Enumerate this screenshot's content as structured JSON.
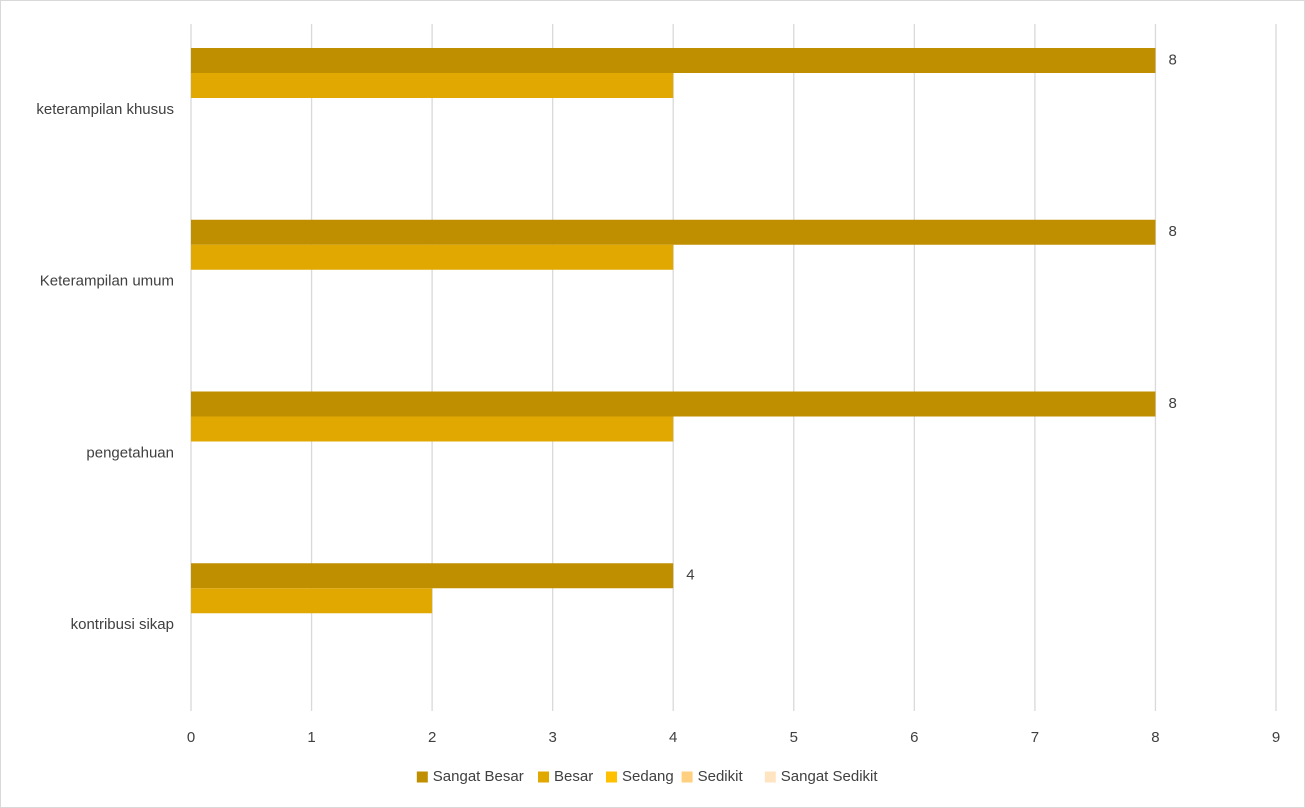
{
  "chart_data": {
    "type": "bar",
    "orientation": "horizontal",
    "categories": [
      "keterampilan khusus",
      "Keterampilan umum",
      "pengetahuan",
      "kontribusi sikap"
    ],
    "series": [
      {
        "name": "Sangat Besar",
        "color": "#bf8f00",
        "values": [
          8,
          8,
          8,
          4
        ],
        "show_labels": true
      },
      {
        "name": "Besar",
        "color": "#e0a800",
        "values": [
          4,
          4,
          4,
          2
        ],
        "show_labels": false
      },
      {
        "name": "Sedang",
        "color": "#ffc000",
        "values": [
          0,
          0,
          0,
          0
        ],
        "show_labels": false
      },
      {
        "name": "Sedikit",
        "color": "#ffd080",
        "values": [
          0,
          0,
          0,
          0
        ],
        "show_labels": false
      },
      {
        "name": "Sangat Sedikit",
        "color": "#ffe4c2",
        "values": [
          0,
          0,
          0,
          0
        ],
        "show_labels": false
      }
    ],
    "x_ticks": [
      "0",
      "1",
      "2",
      "3",
      "4",
      "5",
      "6",
      "7",
      "8",
      "9"
    ],
    "xlim": [
      0,
      9
    ],
    "grid": true,
    "legend_position": "bottom",
    "title": "",
    "xlabel": "",
    "ylabel": ""
  }
}
